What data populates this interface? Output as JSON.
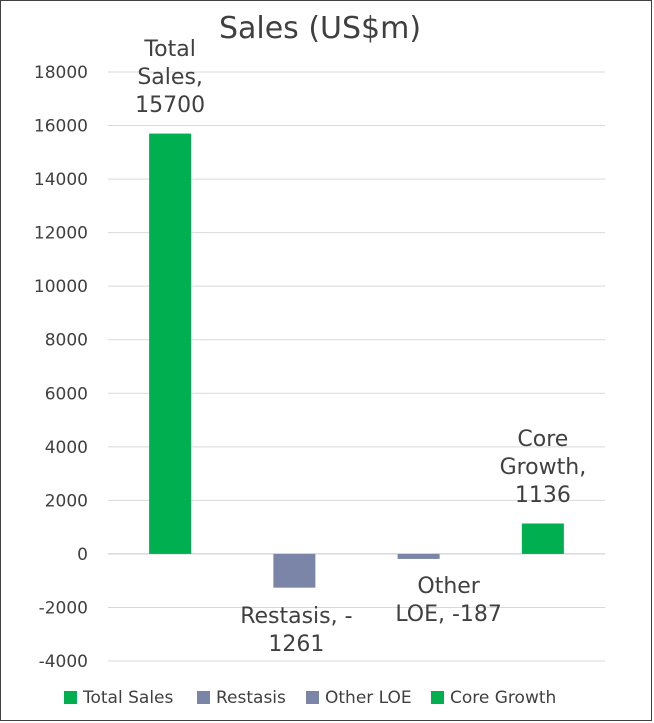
{
  "chart_data": {
    "type": "bar",
    "title": "Sales (US$m)",
    "categories": [
      "Total Sales",
      "Restasis",
      "Other LOE",
      "Core Growth"
    ],
    "series": [
      {
        "name": "Total Sales",
        "values": [
          15700,
          null,
          null,
          null
        ],
        "color": "#00b050"
      },
      {
        "name": "Restasis",
        "values": [
          null,
          -1261,
          null,
          null
        ],
        "color": "#7a85a8"
      },
      {
        "name": "Other LOE",
        "values": [
          null,
          null,
          -187,
          null
        ],
        "color": "#7a85a8"
      },
      {
        "name": "Core Growth",
        "values": [
          null,
          null,
          null,
          1136
        ],
        "color": "#00b050"
      }
    ],
    "data_labels": [
      [
        "Total",
        "Sales,",
        "15700"
      ],
      [
        "Restasis, -",
        "1261"
      ],
      [
        "Other",
        "LOE, -187"
      ],
      [
        "Core",
        "Growth,",
        "1136"
      ]
    ],
    "y_ticks": [
      "18000",
      "16000",
      "14000",
      "12000",
      "10000",
      "8000",
      "6000",
      "4000",
      "2000",
      "0",
      "-2000",
      "-4000"
    ],
    "ylim": [
      -4000,
      18000
    ],
    "grid": true,
    "legend_position": "bottom"
  }
}
